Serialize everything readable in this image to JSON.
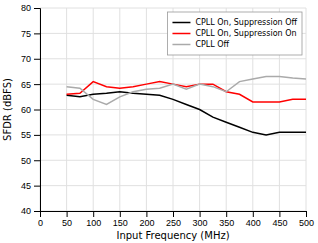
{
  "chart_data": {
    "type": "line",
    "xlabel": "Input Frequency (MHz)",
    "ylabel": "SFDR (dBFS)",
    "x": [
      50,
      75,
      100,
      125,
      150,
      175,
      200,
      225,
      250,
      275,
      300,
      325,
      350,
      375,
      400,
      425,
      450,
      475,
      500
    ],
    "series": [
      {
        "name": "CPLL On, Suppression Off",
        "color": "#000000",
        "values": [
          62.8,
          62.5,
          63.0,
          63.2,
          63.5,
          63.2,
          63.0,
          62.8,
          62.0,
          61.0,
          60.0,
          58.5,
          57.5,
          56.5,
          55.5,
          55.0,
          55.5,
          55.5,
          55.5
        ]
      },
      {
        "name": "CPLL On, Suppression On",
        "color": "#ff0000",
        "values": [
          63.0,
          63.2,
          65.5,
          64.5,
          64.2,
          64.5,
          65.0,
          65.5,
          65.0,
          64.5,
          65.0,
          65.0,
          63.5,
          63.0,
          61.5,
          61.5,
          61.5,
          62.0,
          62.0
        ]
      },
      {
        "name": "CPLL Off",
        "color": "#aaaaaa",
        "values": [
          64.5,
          64.2,
          62.0,
          61.0,
          62.5,
          63.5,
          64.0,
          64.2,
          65.0,
          64.0,
          65.0,
          64.5,
          63.5,
          65.5,
          66.0,
          66.5,
          66.5,
          66.2,
          66.0
        ]
      }
    ],
    "xlim": [
      0,
      500
    ],
    "ylim": [
      40,
      80
    ],
    "xticks": [
      0,
      50,
      100,
      150,
      200,
      250,
      300,
      350,
      400,
      450,
      500
    ],
    "yticks": [
      40,
      45,
      50,
      55,
      60,
      65,
      70,
      75,
      80
    ],
    "grid": true,
    "legend": "upper right"
  }
}
